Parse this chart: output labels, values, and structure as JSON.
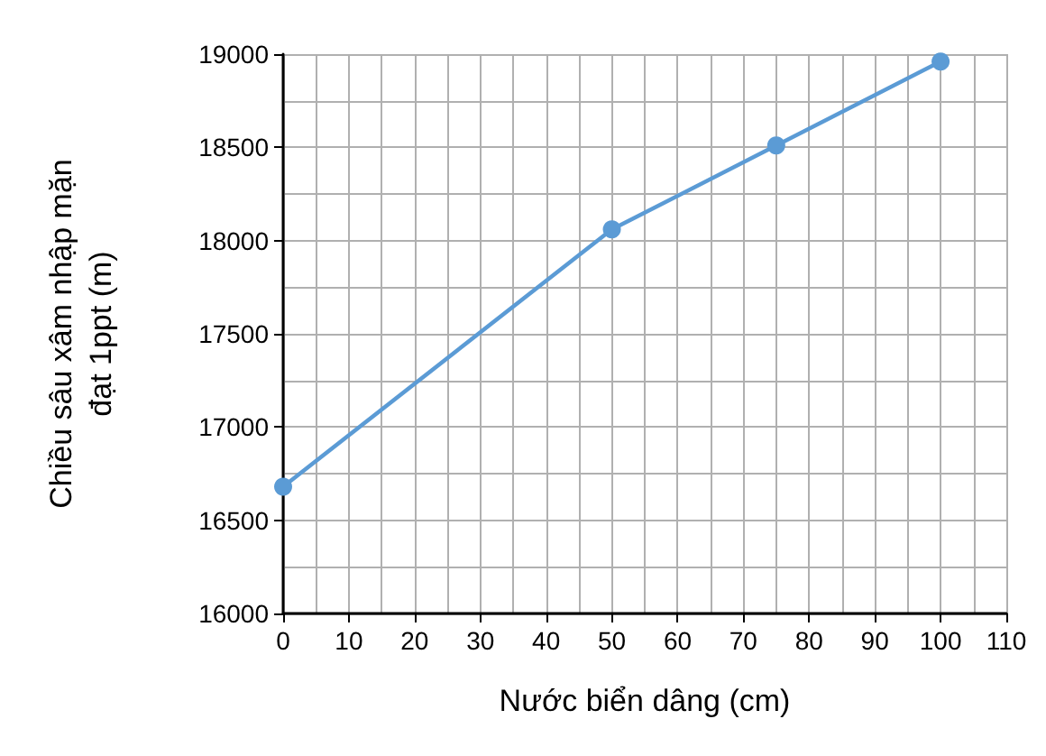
{
  "chart_data": {
    "type": "line",
    "xlabel": "Nước biển dâng (cm)",
    "ylabel": "Chiều sâu xâm nhập mặn\nđạt 1ppt (m)",
    "x": [
      0,
      50,
      75,
      100
    ],
    "series": [
      {
        "color": "#5b9bd5",
        "values": [
          16680,
          18060,
          18510,
          18960
        ]
      }
    ],
    "xlim": [
      0,
      110
    ],
    "xticks": [
      0,
      10,
      20,
      30,
      40,
      50,
      60,
      70,
      80,
      90,
      100,
      110
    ],
    "ylim": [
      16000,
      19000
    ],
    "yticks": [
      16000,
      16500,
      17000,
      17500,
      18000,
      18500,
      19000
    ],
    "grid": true,
    "marker": "circle",
    "line_style": "solid"
  }
}
